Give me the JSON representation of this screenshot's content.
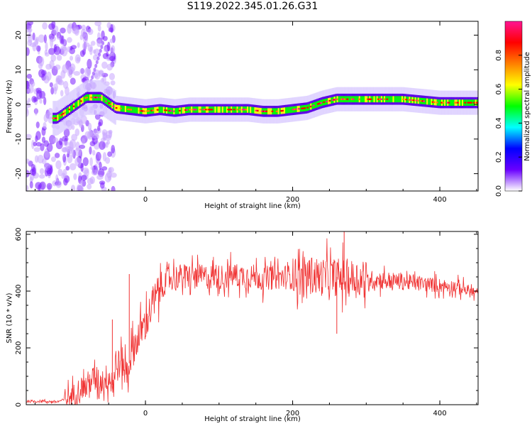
{
  "title": "S119.2022.345.01.26.G31",
  "chart_data": [
    {
      "type": "heatmap",
      "xlabel": "Height of straight line (km)",
      "ylabel": "Frequency (Hz)",
      "xlim": [
        -162,
        452
      ],
      "ylim": [
        -25,
        24
      ],
      "xticks": [
        0,
        200,
        400
      ],
      "yticks": [
        -20,
        -10,
        0,
        10,
        20
      ],
      "colorbar": {
        "label": "Normalized spectral amplitude",
        "range": [
          0,
          1
        ],
        "ticks": [
          "0.0",
          "0.2",
          "0.4",
          "0.6",
          "0.8"
        ],
        "colormap": [
          "#ffffff",
          "#6a00ff",
          "#0000ff",
          "#00ffff",
          "#00ff00",
          "#ffff00",
          "#ff7f00",
          "#ff0000",
          "#ff1493"
        ]
      },
      "ridge": {
        "x": [
          -120,
          -100,
          -80,
          -60,
          -40,
          -20,
          0,
          20,
          40,
          60,
          80,
          100,
          120,
          140,
          160,
          180,
          200,
          220,
          240,
          260,
          300,
          350,
          400,
          452
        ],
        "freq": [
          -4,
          -1,
          2,
          2,
          -1,
          -1.5,
          -2,
          -1.5,
          -2,
          -1.5,
          -1.5,
          -1.5,
          -1.5,
          -1.5,
          -2,
          -2,
          -1.5,
          -1,
          0.5,
          1.5,
          1.5,
          1.5,
          0.5,
          0.5
        ]
      }
    },
    {
      "type": "line",
      "xlabel": "Height of straight line (km)",
      "ylabel": "SNR (10 * v/v)",
      "xlim": [
        -162,
        452
      ],
      "ylim": [
        0,
        610
      ],
      "xticks": [
        0,
        200,
        400
      ],
      "yticks": [
        0,
        200,
        400,
        600
      ],
      "series": [
        {
          "color": "#f03232",
          "x": [
            -162,
            -140,
            -120,
            -110,
            -100,
            -90,
            -80,
            -70,
            -60,
            -50,
            -45,
            -40,
            -30,
            -25,
            -20,
            -10,
            0,
            10,
            20,
            30,
            40,
            60,
            80,
            100,
            120,
            140,
            160,
            180,
            200,
            220,
            240,
            260,
            280,
            300,
            320,
            340,
            360,
            380,
            400,
            420,
            440,
            452
          ],
          "y": [
            12,
            12,
            10,
            18,
            30,
            55,
            70,
            95,
            80,
            100,
            70,
            130,
            150,
            110,
            170,
            240,
            290,
            350,
            410,
            440,
            450,
            455,
            450,
            450,
            455,
            455,
            445,
            450,
            450,
            455,
            450,
            450,
            445,
            440,
            440,
            435,
            430,
            425,
            420,
            415,
            400,
            390
          ]
        }
      ],
      "annotations": [
        {
          "x": -45,
          "y": 300
        },
        {
          "x": -22,
          "y": 460
        },
        {
          "x": 270,
          "y": 610
        },
        {
          "x": 260,
          "y": 250
        }
      ]
    }
  ]
}
